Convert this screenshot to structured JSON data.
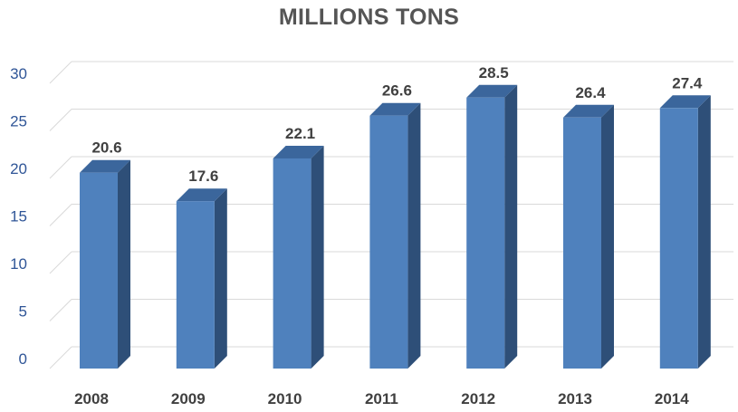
{
  "chart_data": {
    "type": "bar",
    "title": "MILLIONS TONS",
    "xlabel": "",
    "ylabel": "",
    "categories": [
      "2008",
      "2009",
      "2010",
      "2011",
      "2012",
      "2013",
      "2014"
    ],
    "values": [
      20.6,
      17.6,
      22.1,
      26.6,
      28.5,
      26.4,
      27.4
    ],
    "data_labels": [
      "20.6",
      "17.6",
      "22.1",
      "26.6",
      "28.5",
      "26.4",
      "27.4"
    ],
    "ylim": [
      0,
      30
    ],
    "yticks": [
      0,
      5,
      10,
      15,
      20,
      25,
      30
    ],
    "ytick_labels": [
      "0",
      "5",
      "10",
      "15",
      "20",
      "25",
      "30"
    ],
    "grid": true,
    "legend": "none",
    "style": "3d-column",
    "colors": {
      "bar_front": "#4f81bd",
      "bar_side": "#2e4f78",
      "bar_top": "#3b669c",
      "grid": "#d9d9d9",
      "y_tick_text": "#2f5597",
      "x_tick_text": "#404040",
      "title_text": "#555555"
    }
  }
}
